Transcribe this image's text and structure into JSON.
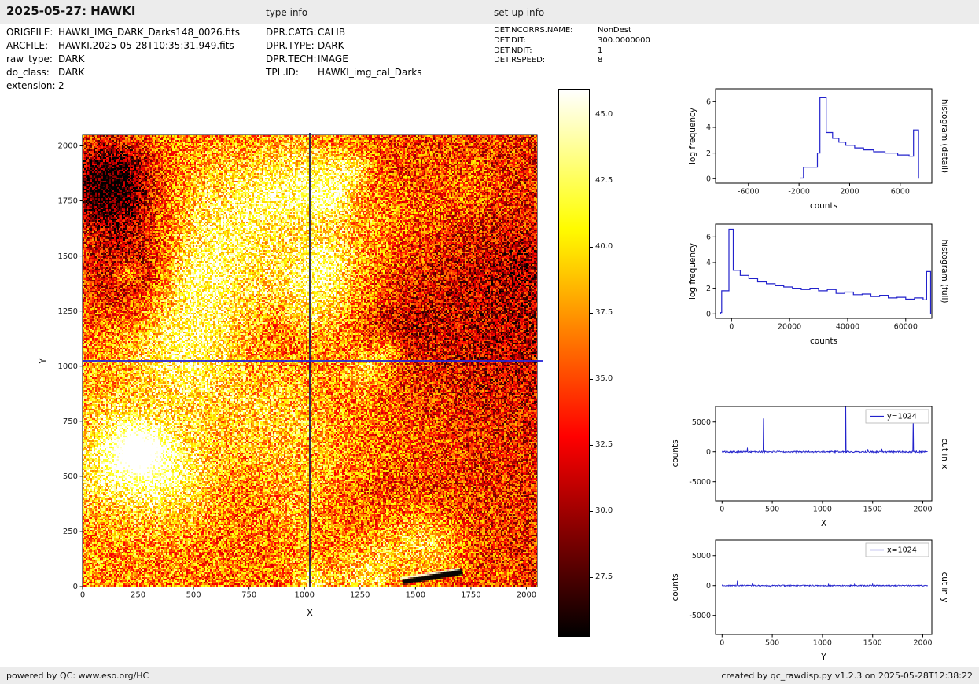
{
  "header": {
    "title": "2025-05-27: HAWKI",
    "type_info_label": "type info",
    "setup_info_label": "set-up info"
  },
  "metadata": {
    "left": [
      {
        "key": "ORIGFILE:",
        "value": "HAWKI_IMG_DARK_Darks148_0026.fits"
      },
      {
        "key": "ARCFILE:",
        "value": "HAWKI.2025-05-28T10:35:31.949.fits"
      },
      {
        "key": "raw_type:",
        "value": "DARK"
      },
      {
        "key": "do_class:",
        "value": "DARK"
      },
      {
        "key": "extension:",
        "value": "2"
      }
    ],
    "middle": [
      {
        "key": "DPR.CATG:",
        "value": "CALIB"
      },
      {
        "key": "DPR.TYPE:",
        "value": "DARK"
      },
      {
        "key": "DPR.TECH:",
        "value": "IMAGE"
      },
      {
        "key": "TPL.ID:",
        "value": "HAWKI_img_cal_Darks"
      }
    ],
    "right": [
      {
        "key": "DET.NCORRS.NAME:",
        "value": "NonDest"
      },
      {
        "key": "DET.DIT:",
        "value": "300.0000000"
      },
      {
        "key": "DET.NDIT:",
        "value": "1"
      },
      {
        "key": "DET.RSPEED:",
        "value": "8"
      }
    ]
  },
  "footer": {
    "left": "powered by QC: www.eso.org/HC",
    "right": "created by qc_rawdisp.py v1.2.3 on 2025-05-28T12:38:22"
  },
  "chart_data": [
    {
      "type": "heatmap",
      "xlabel": "X",
      "ylabel": "Y",
      "xlim": [
        0,
        2048
      ],
      "ylim": [
        0,
        2048
      ],
      "xticks": [
        0,
        250,
        500,
        750,
        1000,
        1250,
        1500,
        1750,
        2000
      ],
      "yticks": [
        0,
        250,
        500,
        750,
        1000,
        1250,
        1500,
        1750,
        2000
      ],
      "colormap": "hot",
      "crosshair": {
        "x": 1024,
        "y": 1024
      },
      "colorbar": {
        "vmin": 25.3,
        "vmax": 46.0,
        "ticks": [
          27.5,
          30.0,
          32.5,
          35.0,
          37.5,
          40.0,
          42.5,
          45.0
        ],
        "tick_labels": [
          "27.5",
          "30.0",
          "32.5",
          "35.0",
          "37.5",
          "40.0",
          "42.5",
          "45.0"
        ]
      }
    },
    {
      "type": "line",
      "subtype": "step-histogram",
      "right_label": "histogram (detail)",
      "xlabel": "counts",
      "ylabel": "log frequency",
      "xlim": [
        -8600,
        8500
      ],
      "ylim": [
        -0.35,
        7.0
      ],
      "xticks": [
        -6000,
        -2000,
        2000,
        6000
      ],
      "yticks": [
        0,
        2,
        4,
        6
      ],
      "line_color": "#2222cc",
      "levels": [
        [
          -1900,
          0.05
        ],
        [
          -1650,
          0.9
        ],
        [
          -550,
          2.0
        ],
        [
          -350,
          6.3
        ],
        [
          150,
          3.6
        ],
        [
          650,
          3.15
        ],
        [
          1150,
          2.85
        ],
        [
          1700,
          2.6
        ],
        [
          2400,
          2.4
        ],
        [
          3100,
          2.25
        ],
        [
          3900,
          2.1
        ],
        [
          4800,
          2.0
        ],
        [
          5800,
          1.85
        ],
        [
          6700,
          1.75
        ],
        [
          7050,
          3.8
        ]
      ],
      "xend": 7450
    },
    {
      "type": "line",
      "subtype": "step-histogram",
      "right_label": "histogram (full)",
      "xlabel": "counts",
      "ylabel": "log frequency",
      "xlim": [
        -5500,
        69000
      ],
      "ylim": [
        -0.35,
        7.0
      ],
      "xticks": [
        0,
        20000,
        40000,
        60000
      ],
      "yticks": [
        0,
        2,
        4,
        6
      ],
      "line_color": "#2222cc",
      "levels": [
        [
          -3800,
          0.1
        ],
        [
          -3400,
          1.8
        ],
        [
          -900,
          6.6
        ],
        [
          600,
          3.4
        ],
        [
          3000,
          3.0
        ],
        [
          6000,
          2.75
        ],
        [
          9000,
          2.5
        ],
        [
          12000,
          2.35
        ],
        [
          15000,
          2.2
        ],
        [
          18000,
          2.1
        ],
        [
          21000,
          2.0
        ],
        [
          24000,
          1.9
        ],
        [
          27000,
          2.0
        ],
        [
          30000,
          1.8
        ],
        [
          33000,
          1.9
        ],
        [
          36000,
          1.6
        ],
        [
          39000,
          1.7
        ],
        [
          42000,
          1.5
        ],
        [
          45000,
          1.55
        ],
        [
          48000,
          1.35
        ],
        [
          51000,
          1.45
        ],
        [
          54000,
          1.25
        ],
        [
          57000,
          1.3
        ],
        [
          60000,
          1.15
        ],
        [
          63000,
          1.25
        ],
        [
          66000,
          1.1
        ],
        [
          67200,
          3.3
        ]
      ],
      "xend": 68600
    },
    {
      "type": "line",
      "subtype": "row-cut",
      "right_label": "cut in x",
      "xlabel": "X",
      "ylabel": "counts",
      "legend": "y=1024",
      "xlim": [
        -65,
        2090
      ],
      "ylim": [
        -8200,
        7600
      ],
      "xticks": [
        0,
        500,
        1000,
        1500,
        2000
      ],
      "yticks": [
        -5000,
        0,
        5000
      ],
      "line_color": "#2222cc",
      "baseline": 0,
      "noise_amp": 130,
      "spikes": [
        [
          250,
          700
        ],
        [
          410,
          5600
        ],
        [
          1230,
          9500
        ],
        [
          1450,
          450
        ],
        [
          1590,
          520
        ],
        [
          1905,
          6400
        ]
      ]
    },
    {
      "type": "line",
      "subtype": "column-cut",
      "right_label": "cut in y",
      "xlabel": "Y",
      "ylabel": "counts",
      "legend": "x=1024",
      "xlim": [
        -65,
        2090
      ],
      "ylim": [
        -8200,
        7600
      ],
      "xticks": [
        0,
        500,
        1000,
        1500,
        2000
      ],
      "yticks": [
        -5000,
        0,
        5000
      ],
      "line_color": "#2222cc",
      "baseline": 0,
      "noise_amp": 90,
      "spikes": [
        [
          150,
          800
        ],
        [
          300,
          250
        ],
        [
          480,
          -220
        ],
        [
          1060,
          300
        ],
        [
          1320,
          220
        ],
        [
          1500,
          260
        ]
      ]
    }
  ]
}
